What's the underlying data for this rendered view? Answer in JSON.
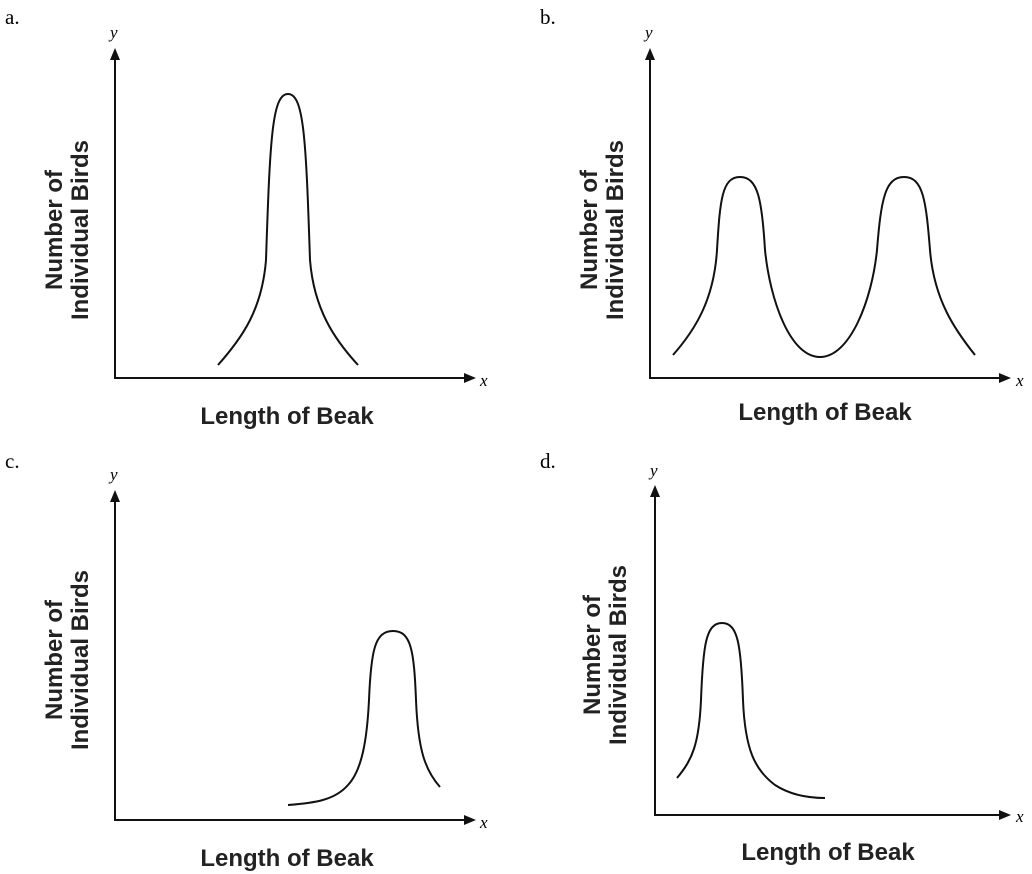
{
  "panels": [
    {
      "label": "a.",
      "y_axis": "y",
      "x_axis": "x",
      "y_title": [
        "Number of",
        "Individual Birds"
      ],
      "x_title": "Length of Beak"
    },
    {
      "label": "b.",
      "y_axis": "y",
      "x_axis": "x",
      "y_title": [
        "Number of",
        "Individual Birds"
      ],
      "x_title": "Length of Beak"
    },
    {
      "label": "c.",
      "y_axis": "y",
      "x_axis": "x",
      "y_title": [
        "Number of",
        "Individual Birds"
      ],
      "x_title": "Length of Beak"
    },
    {
      "label": "d.",
      "y_axis": "y",
      "x_axis": "x",
      "y_title": [
        "Number of",
        "Individual Birds"
      ],
      "x_title": "Length of Beak"
    }
  ]
}
